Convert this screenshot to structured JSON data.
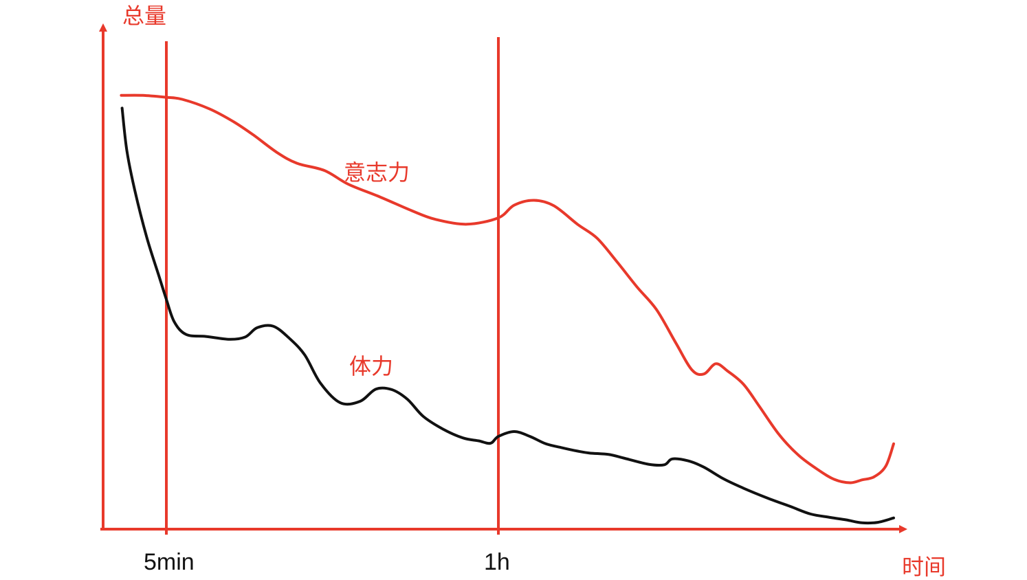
{
  "colors": {
    "axis": "#e8392b",
    "willpower": "#e8392b",
    "stamina": "#111111"
  },
  "chart_data": {
    "type": "line",
    "ylabel": "总量",
    "xlabel": "时间",
    "markers": [
      {
        "label": "5min",
        "x": 0.08
      },
      {
        "label": "1h",
        "x": 0.5
      }
    ],
    "xlim": [
      0,
      1
    ],
    "ylim": [
      0,
      1
    ],
    "grid": false,
    "series": [
      {
        "name": "意志力",
        "color": "#e8392b",
        "points": [
          [
            0.023,
            0.889
          ],
          [
            0.05,
            0.889
          ],
          [
            0.08,
            0.885
          ],
          [
            0.1,
            0.881
          ],
          [
            0.135,
            0.861
          ],
          [
            0.165,
            0.835
          ],
          [
            0.19,
            0.808
          ],
          [
            0.22,
            0.772
          ],
          [
            0.245,
            0.75
          ],
          [
            0.28,
            0.735
          ],
          [
            0.31,
            0.707
          ],
          [
            0.35,
            0.681
          ],
          [
            0.39,
            0.653
          ],
          [
            0.42,
            0.635
          ],
          [
            0.46,
            0.625
          ],
          [
            0.5,
            0.638
          ],
          [
            0.52,
            0.664
          ],
          [
            0.545,
            0.674
          ],
          [
            0.57,
            0.663
          ],
          [
            0.6,
            0.625
          ],
          [
            0.625,
            0.596
          ],
          [
            0.65,
            0.548
          ],
          [
            0.675,
            0.497
          ],
          [
            0.7,
            0.45
          ],
          [
            0.725,
            0.38
          ],
          [
            0.745,
            0.326
          ],
          [
            0.76,
            0.318
          ],
          [
            0.775,
            0.339
          ],
          [
            0.79,
            0.324
          ],
          [
            0.81,
            0.297
          ],
          [
            0.83,
            0.252
          ],
          [
            0.855,
            0.194
          ],
          [
            0.88,
            0.151
          ],
          [
            0.905,
            0.121
          ],
          [
            0.925,
            0.102
          ],
          [
            0.945,
            0.095
          ],
          [
            0.96,
            0.101
          ],
          [
            0.975,
            0.107
          ],
          [
            0.99,
            0.129
          ],
          [
            1.0,
            0.175
          ]
        ]
      },
      {
        "name": "体力",
        "color": "#111111",
        "points": [
          [
            0.024,
            0.863
          ],
          [
            0.03,
            0.776
          ],
          [
            0.04,
            0.695
          ],
          [
            0.055,
            0.599
          ],
          [
            0.07,
            0.522
          ],
          [
            0.08,
            0.471
          ],
          [
            0.09,
            0.425
          ],
          [
            0.105,
            0.399
          ],
          [
            0.13,
            0.395
          ],
          [
            0.16,
            0.389
          ],
          [
            0.18,
            0.394
          ],
          [
            0.195,
            0.413
          ],
          [
            0.215,
            0.416
          ],
          [
            0.235,
            0.392
          ],
          [
            0.255,
            0.357
          ],
          [
            0.275,
            0.299
          ],
          [
            0.3,
            0.259
          ],
          [
            0.325,
            0.262
          ],
          [
            0.345,
            0.287
          ],
          [
            0.365,
            0.286
          ],
          [
            0.385,
            0.266
          ],
          [
            0.405,
            0.231
          ],
          [
            0.43,
            0.205
          ],
          [
            0.455,
            0.187
          ],
          [
            0.475,
            0.181
          ],
          [
            0.49,
            0.176
          ],
          [
            0.5,
            0.19
          ],
          [
            0.52,
            0.2
          ],
          [
            0.54,
            0.19
          ],
          [
            0.56,
            0.175
          ],
          [
            0.58,
            0.167
          ],
          [
            0.6,
            0.16
          ],
          [
            0.615,
            0.156
          ],
          [
            0.64,
            0.153
          ],
          [
            0.66,
            0.145
          ],
          [
            0.69,
            0.133
          ],
          [
            0.71,
            0.132
          ],
          [
            0.72,
            0.144
          ],
          [
            0.74,
            0.14
          ],
          [
            0.76,
            0.127
          ],
          [
            0.785,
            0.103
          ],
          [
            0.81,
            0.084
          ],
          [
            0.84,
            0.064
          ],
          [
            0.87,
            0.046
          ],
          [
            0.895,
            0.031
          ],
          [
            0.92,
            0.024
          ],
          [
            0.94,
            0.019
          ],
          [
            0.96,
            0.013
          ],
          [
            0.98,
            0.014
          ],
          [
            1.0,
            0.023
          ]
        ]
      }
    ]
  }
}
